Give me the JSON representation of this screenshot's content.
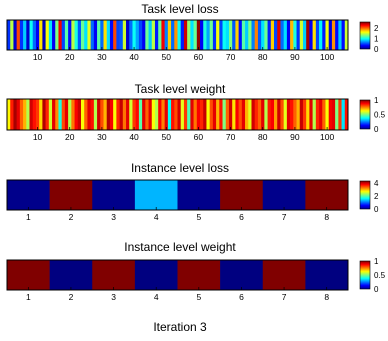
{
  "figure": {
    "footer": "Iteration 3"
  },
  "chart_data": [
    {
      "type": "heatmap",
      "title": "Task level loss",
      "n": 106,
      "x_ticks": [
        10,
        20,
        30,
        40,
        50,
        60,
        70,
        80,
        90,
        100
      ],
      "colorbar": {
        "ticks": [
          2,
          1,
          0
        ],
        "range": [
          0,
          2.6
        ]
      },
      "values": [
        0.45,
        1.45,
        0.2,
        2.1,
        0.45,
        0.85,
        0.2,
        1.0,
        0.6,
        0.3,
        1.7,
        0.15,
        1.6,
        0.9,
        0.3,
        1.3,
        2.3,
        0.5,
        1.2,
        0.35,
        1.45,
        1.05,
        0.55,
        1.25,
        0.9,
        1.55,
        0.6,
        0.3,
        1.2,
        0.6,
        1.7,
        0.9,
        0.35,
        2.1,
        0.5,
        0.55,
        1.5,
        0.2,
        0.6,
        1.0,
        0.75,
        0.5,
        0.3,
        1.25,
        0.85,
        1.45,
        0.4,
        1.25,
        2.3,
        0.65,
        1.75,
        0.6,
        1.9,
        1.0,
        0.4,
        2.4,
        1.35,
        0.9,
        1.25,
        2.55,
        0.3,
        1.05,
        0.75,
        1.25,
        0.45,
        1.6,
        0.5,
        1.0,
        0.9,
        1.3,
        0.55,
        1.75,
        0.35,
        1.2,
        0.85,
        1.3,
        0.65,
        1.95,
        0.55,
        0.9,
        1.25,
        0.4,
        1.75,
        0.5,
        2.35,
        0.6,
        0.9,
        0.3,
        1.8,
        1.05,
        0.45,
        1.5,
        0.85,
        2.5,
        0.3,
        1.7,
        0.5,
        0.95,
        0.4,
        1.6,
        0.25,
        1.9,
        0.35,
        0.85,
        0.35,
        1.5
      ]
    },
    {
      "type": "heatmap",
      "title": "Task level weight",
      "n": 106,
      "x_ticks": [
        10,
        20,
        30,
        40,
        50,
        60,
        70,
        80,
        90,
        100
      ],
      "colorbar": {
        "ticks": [
          1,
          0.5,
          0
        ],
        "range": [
          0,
          1
        ]
      },
      "values": [
        0.63,
        0.85,
        0.96,
        0.9,
        0.78,
        0.7,
        0.55,
        0.92,
        0.86,
        0.82,
        0.66,
        0.95,
        0.84,
        0.58,
        0.9,
        0.74,
        0.4,
        0.8,
        0.9,
        0.55,
        0.76,
        0.88,
        0.93,
        0.62,
        0.78,
        0.9,
        0.86,
        0.55,
        0.92,
        0.8,
        0.7,
        0.95,
        0.88,
        0.62,
        0.84,
        0.93,
        0.76,
        0.9,
        0.58,
        0.82,
        0.87,
        0.46,
        0.9,
        0.78,
        0.9,
        0.62,
        0.55,
        0.88,
        0.75,
        0.9,
        0.38,
        0.86,
        0.8,
        0.92,
        0.6,
        0.82,
        0.45,
        0.9,
        0.76,
        0.88,
        0.84,
        0.93,
        0.62,
        0.8,
        0.9,
        0.7,
        0.86,
        0.5,
        0.78,
        0.92,
        0.65,
        0.88,
        0.8,
        0.9,
        0.7,
        0.6,
        0.92,
        0.84,
        0.78,
        0.9,
        0.55,
        0.85,
        0.88,
        0.72,
        0.92,
        0.8,
        0.6,
        0.9,
        0.86,
        0.78,
        0.7,
        0.93,
        0.82,
        0.66,
        0.9,
        0.55,
        0.84,
        0.9,
        0.78,
        0.62,
        0.88,
        0.9,
        0.5,
        0.82,
        0.35,
        0.86
      ]
    },
    {
      "type": "heatmap",
      "title": "Instance level loss",
      "n": 8,
      "x_ticks": [
        1,
        2,
        3,
        4,
        5,
        6,
        7,
        8
      ],
      "colorbar": {
        "ticks": [
          4,
          2,
          0
        ],
        "range": [
          0,
          4.3
        ]
      },
      "values": [
        0.05,
        4.3,
        0.05,
        1.3,
        0.05,
        4.3,
        0.05,
        4.3
      ]
    },
    {
      "type": "heatmap",
      "title": "Instance level weight",
      "n": 8,
      "x_ticks": [
        1,
        2,
        3,
        4,
        5,
        6,
        7,
        8
      ],
      "colorbar": {
        "ticks": [
          1,
          0.5,
          0
        ],
        "range": [
          0,
          1
        ]
      },
      "values": [
        1,
        0,
        1,
        0,
        1,
        0,
        1,
        0
      ]
    }
  ]
}
